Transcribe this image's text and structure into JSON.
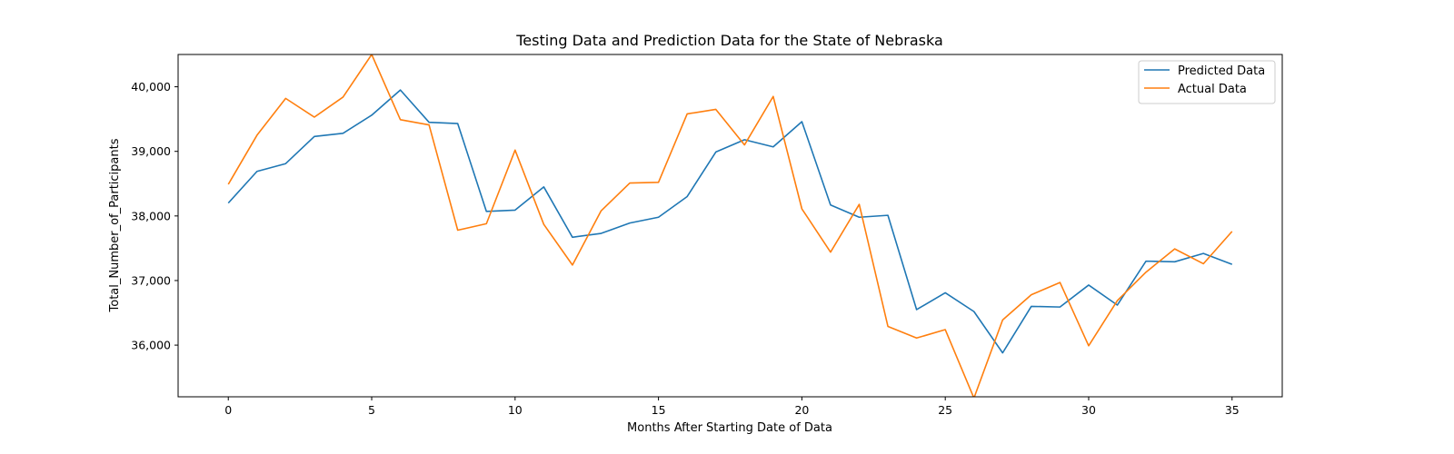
{
  "chart_data": {
    "type": "line",
    "title": "Testing Data and Prediction Data for the State of Nebraska",
    "xlabel": "Months After Starting Date of Data",
    "ylabel": "Total_Number_of_Participants",
    "xlim": [
      -1.75,
      36.75
    ],
    "ylim": [
      35200,
      40500
    ],
    "xticks": [
      0,
      5,
      10,
      15,
      20,
      25,
      30,
      35
    ],
    "xtick_labels": [
      "0",
      "5",
      "10",
      "15",
      "20",
      "25",
      "30",
      "35"
    ],
    "yticks": [
      36000,
      37000,
      38000,
      39000,
      40000
    ],
    "ytick_labels": [
      "36,000",
      "37,000",
      "38,000",
      "39,000",
      "40,000"
    ],
    "grid": false,
    "legend_position": "top-right",
    "x": [
      0,
      1,
      2,
      3,
      4,
      5,
      6,
      7,
      8,
      9,
      10,
      11,
      12,
      13,
      14,
      15,
      16,
      17,
      18,
      19,
      20,
      21,
      22,
      23,
      24,
      25,
      26,
      27,
      28,
      29,
      30,
      31,
      32,
      33,
      34,
      35
    ],
    "series": [
      {
        "name": "Predicted Data",
        "color": "#1f77b4",
        "values": [
          38200,
          38690,
          38810,
          39230,
          39280,
          39560,
          39950,
          39450,
          39430,
          38070,
          38090,
          38450,
          37670,
          37730,
          37890,
          37980,
          38300,
          38990,
          39180,
          39070,
          39460,
          38170,
          37980,
          38010,
          36550,
          36810,
          36520,
          35880,
          36600,
          36590,
          36930,
          36620,
          37300,
          37290,
          37420,
          37250
        ]
      },
      {
        "name": "Actual Data",
        "color": "#ff7f0e",
        "values": [
          38490,
          39250,
          39820,
          39530,
          39840,
          40500,
          39490,
          39410,
          37780,
          37880,
          39020,
          37870,
          37240,
          38080,
          38510,
          38520,
          39580,
          39650,
          39100,
          39850,
          38110,
          37440,
          38180,
          36290,
          36110,
          36240,
          35180,
          36390,
          36780,
          36970,
          35990,
          36690,
          37130,
          37490,
          37260,
          37760
        ]
      }
    ]
  }
}
